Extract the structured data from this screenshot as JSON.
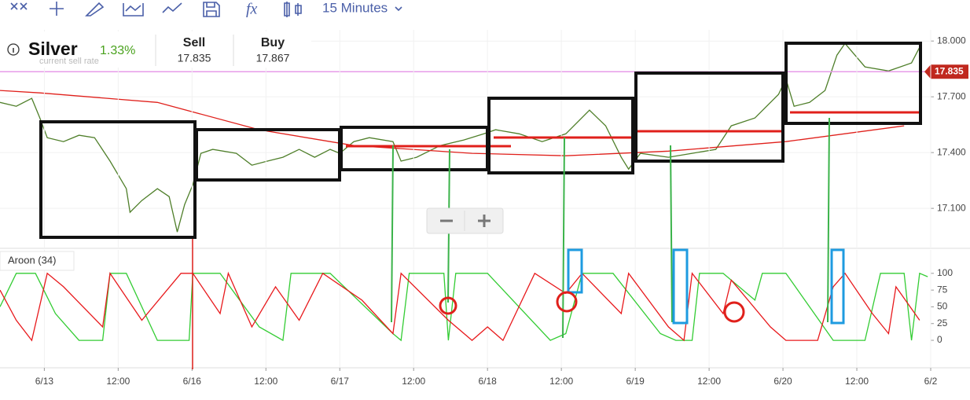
{
  "toolbar": {
    "interval": "15 Minutes"
  },
  "instrument": {
    "name": "Silver",
    "change": "1.33%",
    "faded_caption": "current sell rate",
    "sell_label": "Sell",
    "sell": "17.835",
    "buy_label": "Buy",
    "buy": "17.867"
  },
  "chart_data": [
    {
      "type": "line",
      "xlim": [
        -0.6,
        12
      ],
      "ylim": [
        16.885,
        18.06
      ],
      "yticks": [
        {
          "value": 18,
          "label": "18.000"
        },
        {
          "value": 17.7,
          "label": "17.700"
        },
        {
          "value": 17.4,
          "label": "17.400"
        },
        {
          "value": 17.1,
          "label": "17.100"
        }
      ],
      "current_price": 17.835,
      "grid": true,
      "series": [
        {
          "color": "#4f7f2a",
          "x": [
            -0.6,
            -0.38,
            -0.17,
            -0.06,
            0.04,
            0.26,
            0.47,
            0.68,
            0.89,
            1.11,
            1.16,
            1.32,
            1.53,
            1.69,
            1.8,
            1.9,
            2.01,
            2.12,
            2.28,
            2.6,
            2.81,
            3.02,
            3.23,
            3.45,
            3.66,
            3.87,
            4.0,
            4.19,
            4.4,
            4.72,
            4.83,
            5.04,
            5.36,
            5.68,
            5.95,
            6.11,
            6.43,
            6.74,
            7.06,
            7.38,
            7.6,
            7.81,
            7.91,
            8.07,
            8.45,
            8.77,
            9.09,
            9.3,
            9.62,
            9.94,
            10.04,
            10.15,
            10.36,
            10.57,
            10.73,
            10.84,
            11.11,
            11.43,
            11.74,
            11.85
          ],
          "values": [
            17.67,
            17.649,
            17.692,
            17.586,
            17.48,
            17.459,
            17.493,
            17.48,
            17.354,
            17.206,
            17.079,
            17.142,
            17.206,
            17.163,
            16.973,
            17.121,
            17.227,
            17.396,
            17.417,
            17.396,
            17.332,
            17.354,
            17.375,
            17.417,
            17.375,
            17.417,
            17.396,
            17.459,
            17.48,
            17.459,
            17.354,
            17.375,
            17.438,
            17.468,
            17.501,
            17.523,
            17.501,
            17.459,
            17.501,
            17.628,
            17.544,
            17.375,
            17.311,
            17.396,
            17.375,
            17.396,
            17.417,
            17.544,
            17.586,
            17.713,
            17.797,
            17.649,
            17.67,
            17.734,
            17.924,
            17.987,
            17.861,
            17.839,
            17.882,
            17.966
          ]
        },
        {
          "color": "#e0201b",
          "x": [
            -0.6,
            -0.06,
            1.53,
            2.91,
            4.19,
            5.79,
            7.06,
            8.45,
            10.04,
            11.64
          ],
          "values": [
            17.734,
            17.721,
            17.67,
            17.523,
            17.438,
            17.396,
            17.383,
            17.408,
            17.459,
            17.544
          ]
        }
      ]
    },
    {
      "type": "line",
      "title": "Aroon (34)",
      "xlim": [
        -0.6,
        12
      ],
      "ylim": [
        -41,
        135
      ],
      "yticks": [
        100,
        75,
        50,
        25,
        0
      ],
      "xticks": [
        {
          "value": 0,
          "label": "6/13"
        },
        {
          "value": 1,
          "label": "12:00"
        },
        {
          "value": 2,
          "label": "6/16"
        },
        {
          "value": 3,
          "label": "12:00"
        },
        {
          "value": 4,
          "label": "6/17"
        },
        {
          "value": 5,
          "label": "12:00"
        },
        {
          "value": 6,
          "label": "6/18"
        },
        {
          "value": 7,
          "label": "12:00"
        },
        {
          "value": 8,
          "label": "6/19"
        },
        {
          "value": 9,
          "label": "12:00"
        },
        {
          "value": 10,
          "label": "6/20"
        },
        {
          "value": 11,
          "label": "12:00"
        },
        {
          "value": 12,
          "label": "6/2"
        }
      ],
      "series": [
        {
          "color": "#33cc33",
          "x": [
            -0.6,
            -0.38,
            -0.12,
            0.15,
            0.47,
            0.79,
            0.89,
            1.11,
            1.53,
            1.96,
            2.01,
            2.38,
            2.91,
            3.23,
            3.34,
            3.87,
            4.72,
            4.83,
            4.94,
            5.41,
            5.47,
            5.57,
            6.0,
            6.85,
            7.06,
            7.28,
            7.7,
            8.34,
            8.55,
            8.77,
            8.87,
            9.19,
            9.62,
            9.72,
            10.04,
            10.68,
            11.11,
            11.32,
            11.64,
            11.74,
            11.85,
            11.96
          ],
          "values": [
            50,
            100,
            100,
            40,
            0,
            0,
            100,
            100,
            0,
            0,
            100,
            100,
            20,
            0,
            100,
            100,
            10,
            0,
            100,
            100,
            0,
            100,
            100,
            0,
            10,
            100,
            100,
            10,
            0,
            0,
            100,
            100,
            60,
            100,
            100,
            0,
            0,
            100,
            100,
            0,
            100,
            95
          ]
        },
        {
          "color": "#e8191c",
          "x": [
            -0.6,
            -0.38,
            -0.17,
            0.04,
            0.26,
            0.79,
            0.89,
            1.32,
            1.85,
            2.01,
            2.38,
            2.49,
            2.81,
            3.13,
            3.45,
            3.77,
            4.3,
            4.72,
            4.83,
            5.47,
            5.79,
            6.0,
            6.21,
            6.64,
            7.06,
            7.28,
            7.81,
            7.91,
            8.45,
            8.66,
            8.77,
            9.19,
            9.3,
            9.83,
            10.04,
            10.47,
            10.68,
            10.84,
            11.21,
            11.43,
            11.53,
            11.85
          ],
          "values": [
            75,
            30,
            0,
            100,
            80,
            20,
            100,
            30,
            100,
            100,
            40,
            100,
            20,
            80,
            30,
            100,
            60,
            10,
            100,
            30,
            0,
            20,
            0,
            100,
            70,
            100,
            40,
            100,
            20,
            0,
            100,
            40,
            90,
            20,
            0,
            0,
            80,
            100,
            40,
            10,
            80,
            30
          ]
        }
      ]
    }
  ]
}
